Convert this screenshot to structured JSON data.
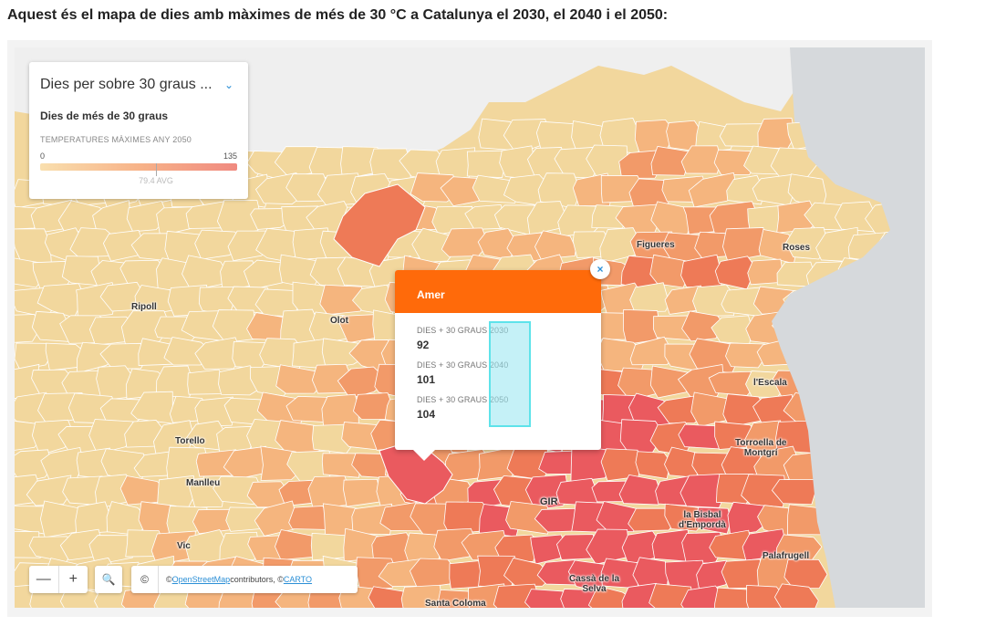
{
  "heading": "Aquest és el mapa de dies amb màximes de més de 30 °C a Catalunya el 2030, el 2040 i el 2050:",
  "legend": {
    "select_label": "Dies per sobre 30 graus ...",
    "subtitle": "Dies de més de 30 graus",
    "meta": "TEMPERATURES MÀXIMES ANY 2050",
    "min": "0",
    "max": "135",
    "avg_label": "79.4 AVG",
    "avg_fraction": 0.588,
    "colors": [
      "#f9dfae",
      "#f7b389",
      "#f08a80"
    ]
  },
  "popup": {
    "title": "Amer",
    "rows": [
      {
        "key": "DIES + 30 GRAUS 2030",
        "value": "92"
      },
      {
        "key": "DIES + 30 GRAUS 2040",
        "value": "101"
      },
      {
        "key": "DIES + 30 GRAUS 2050",
        "value": "104"
      }
    ],
    "close": "×"
  },
  "map": {
    "labels": [
      {
        "name": "Figueres"
      },
      {
        "name": "Roses"
      },
      {
        "name": "Ripoll"
      },
      {
        "name": "Olot"
      },
      {
        "name": "l'Escala"
      },
      {
        "name": "Torroella de\nMontgrí"
      },
      {
        "name": "Torello"
      },
      {
        "name": "Manlleu"
      },
      {
        "name": "Vic"
      },
      {
        "name": "GIR"
      },
      {
        "name": "la Bisbal\nd'Empordà"
      },
      {
        "name": "Palafrugell"
      },
      {
        "name": "Cassà de la\nSelva"
      },
      {
        "name": "Santa Coloma"
      }
    ],
    "colors": {
      "sea": "#d6d9dc",
      "france": "#efefef",
      "light": "#f2d79d",
      "mid": "#f5b57e",
      "orange": "#f29a69",
      "high": "#ee7a57",
      "hot": "#ea5a5f"
    }
  },
  "controls": {
    "zoom_out": "—",
    "zoom_in": "+",
    "search": "🔍",
    "attrib_icon": "©",
    "attrib_prefix": "© ",
    "attrib_osm": "OpenStreetMap",
    "attrib_mid": " contributors, © ",
    "attrib_carto": "CARTO"
  }
}
